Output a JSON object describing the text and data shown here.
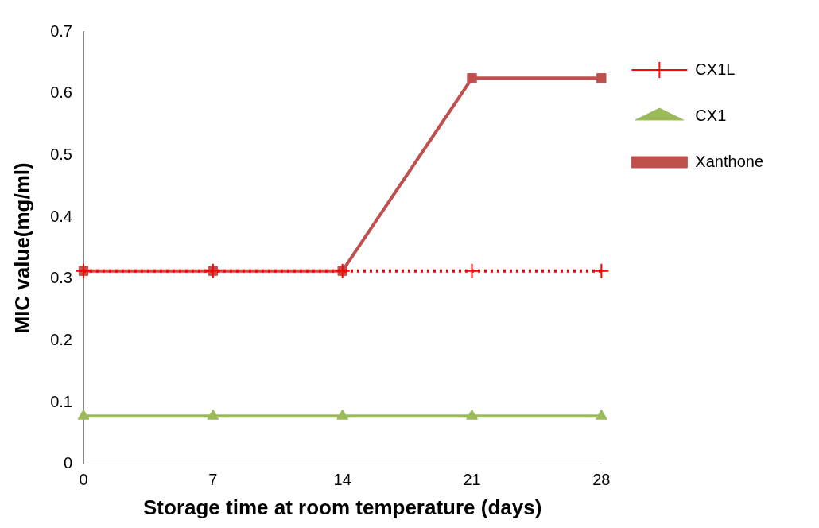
{
  "chart_data": {
    "type": "line",
    "xlabel": "Storage time at room temperature (days)",
    "ylabel": "MIC value(mg/ml)",
    "x": [
      0,
      7,
      14,
      21,
      28
    ],
    "xlim": [
      0,
      28
    ],
    "xticks": [
      0,
      7,
      14,
      21,
      28
    ],
    "ylim": [
      0,
      0.7
    ],
    "yticks": [
      0,
      0.1,
      0.2,
      0.3,
      0.4,
      0.5,
      0.6,
      0.7
    ],
    "grid": false,
    "legend": "top right",
    "series": [
      {
        "name": "Xanthone",
        "color": "#c0504d",
        "marker": "square",
        "line_style": "solid",
        "values": [
          0.313,
          0.313,
          0.313,
          0.625,
          0.625
        ]
      },
      {
        "name": "CX1",
        "color": "#9bbb59",
        "marker": "triangle",
        "line_style": "solid",
        "values": [
          0.078,
          0.078,
          0.078,
          0.078,
          0.078
        ]
      },
      {
        "name": "CX1L",
        "color": "#ff0000",
        "marker": "cross",
        "line_style": "dotted",
        "values": [
          0.313,
          0.313,
          0.313,
          0.313,
          0.313
        ]
      }
    ]
  }
}
